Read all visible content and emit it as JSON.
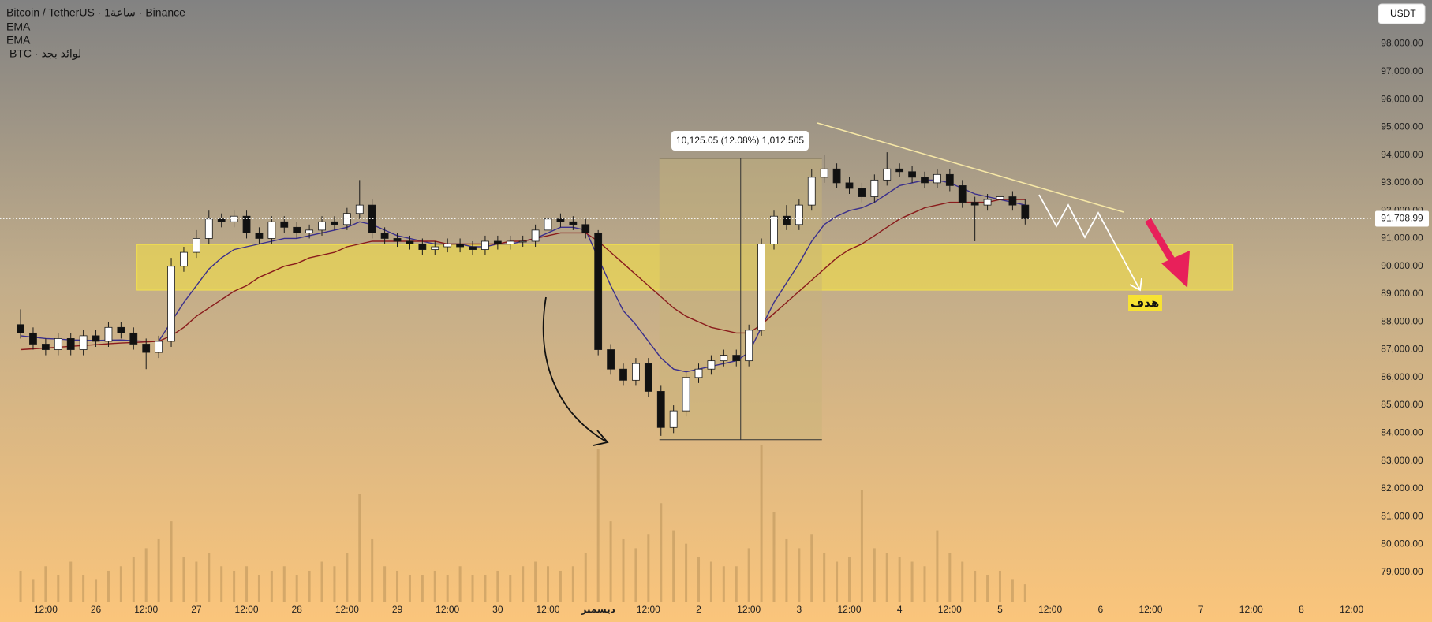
{
  "chart_data": {
    "type": "candlestick",
    "legend": [
      "Bitcoin / TetherUS · 1ساعة · Binance",
      "BTC · لوائد بجد"
    ],
    "currency_button": "USDT",
    "measure_label": "10,125.05 (12.08%) 1,012,505",
    "target_label": "هدف",
    "categories": [
      null,
      null,
      "12:00",
      null,
      null,
      null,
      "26",
      null,
      null,
      null,
      "12:00",
      null,
      null,
      null,
      "27",
      null,
      null,
      null,
      "12:00",
      null,
      null,
      null,
      "28",
      null,
      null,
      null,
      "12:00",
      null,
      null,
      null,
      "29",
      null,
      null,
      null,
      "12:00",
      null,
      null,
      null,
      "30",
      null,
      null,
      null,
      "12:00",
      null,
      null,
      null,
      "ديسمبر",
      null,
      null,
      null,
      "12:00",
      null,
      null,
      null,
      "2",
      null,
      null,
      null,
      "12:00",
      null,
      null,
      null,
      "3",
      null,
      null,
      null,
      "12:00",
      null,
      null,
      null,
      "4",
      null,
      null,
      null,
      "12:00",
      null,
      null,
      null,
      "5",
      null,
      null,
      null,
      "12:00",
      null,
      null,
      null,
      "6",
      null,
      null,
      null,
      "12:00",
      null,
      null,
      null,
      "7",
      null,
      null,
      null,
      "12:00",
      null,
      null,
      null,
      "8",
      null,
      null,
      null,
      "12:00"
    ],
    "open": [
      87900,
      87600,
      87200,
      87000,
      87400,
      87000,
      87500,
      87300,
      87800,
      87600,
      87200,
      86900,
      87300,
      90000,
      90500,
      91000,
      91700,
      91600,
      91800,
      91200,
      91000,
      91600,
      91400,
      91200,
      91300,
      91600,
      91500,
      91900,
      92200,
      91200,
      91000,
      90900,
      90800,
      90600,
      90700,
      90800,
      90700,
      90600,
      90900,
      90800,
      90900,
      90900,
      91300,
      91700,
      91600,
      91500,
      91200,
      87000,
      86300,
      85900,
      86500,
      85500,
      84200,
      84800,
      86000,
      86300,
      86600,
      86800,
      86600,
      87700,
      90800,
      91800,
      91500,
      92200,
      93200,
      93500,
      93000,
      92800,
      92500,
      93100,
      93500,
      93400,
      93200,
      93000,
      93300,
      92900,
      92300,
      92200,
      92400,
      92500,
      92200,
      null,
      null,
      null,
      null,
      null,
      null,
      null,
      null,
      null,
      null,
      null,
      null,
      null,
      null,
      null,
      null,
      null,
      null,
      null,
      null,
      null,
      null,
      null,
      null,
      null,
      null
    ],
    "high": [
      88450,
      87800,
      87400,
      87600,
      87600,
      87700,
      87700,
      88000,
      88000,
      87800,
      87400,
      87500,
      90300,
      90700,
      91300,
      92000,
      91900,
      92000,
      92000,
      91400,
      91800,
      91800,
      91600,
      91500,
      91800,
      91800,
      92100,
      93100,
      92400,
      91400,
      91200,
      91100,
      91000,
      90900,
      91000,
      91000,
      90900,
      91100,
      91100,
      91100,
      91100,
      91500,
      92000,
      91900,
      91800,
      91700,
      91300,
      87200,
      86500,
      86700,
      86700,
      85700,
      85000,
      86200,
      86500,
      86800,
      87000,
      87000,
      87900,
      91000,
      92000,
      92200,
      92400,
      93500,
      94000,
      93700,
      93200,
      93000,
      93300,
      94100,
      93700,
      93600,
      93400,
      93500,
      93500,
      93100,
      92500,
      92600,
      92700,
      92700,
      92400,
      null,
      null,
      null,
      null,
      null,
      null,
      null,
      null,
      null,
      null,
      null,
      null,
      null,
      null,
      null,
      null,
      null,
      null,
      null,
      null,
      null,
      null,
      null,
      null,
      null,
      null
    ],
    "low": [
      87400,
      87000,
      86800,
      86800,
      86800,
      86800,
      87100,
      87100,
      87400,
      87000,
      86300,
      86700,
      87100,
      89800,
      90300,
      90800,
      91400,
      91400,
      91000,
      90800,
      90800,
      91200,
      91000,
      91000,
      91100,
      91300,
      91300,
      91700,
      91000,
      90800,
      90700,
      90600,
      90400,
      90400,
      90500,
      90500,
      90400,
      90400,
      90600,
      90600,
      90700,
      90700,
      91100,
      91400,
      91300,
      91000,
      86800,
      86100,
      85700,
      85700,
      85300,
      83900,
      84000,
      84600,
      85800,
      86100,
      86400,
      86400,
      86400,
      87500,
      90600,
      91300,
      91300,
      92000,
      93000,
      92800,
      92600,
      92300,
      92300,
      92900,
      93200,
      93000,
      92800,
      92800,
      92700,
      92100,
      90900,
      92000,
      92200,
      92000,
      91500,
      null,
      null,
      null,
      null,
      null,
      null,
      null,
      null,
      null,
      null,
      null,
      null,
      null,
      null,
      null,
      null,
      null,
      null,
      null,
      null,
      null,
      null,
      null,
      null,
      null,
      null
    ],
    "close": [
      87600,
      87200,
      87000,
      87400,
      87000,
      87500,
      87300,
      87800,
      87600,
      87200,
      86900,
      87300,
      90000,
      90500,
      91000,
      91700,
      91600,
      91800,
      91200,
      91000,
      91600,
      91400,
      91200,
      91300,
      91600,
      91500,
      91900,
      92200,
      91200,
      91000,
      90900,
      90800,
      90600,
      90700,
      90800,
      90700,
      90600,
      90900,
      90800,
      90900,
      90900,
      91300,
      91700,
      91600,
      91500,
      91200,
      87000,
      86300,
      85900,
      86500,
      85500,
      84200,
      84800,
      86000,
      86300,
      86600,
      86800,
      86600,
      87700,
      90800,
      91800,
      91500,
      92200,
      93200,
      93500,
      93000,
      92800,
      92500,
      93100,
      93500,
      93400,
      93200,
      93000,
      93300,
      92900,
      92300,
      92200,
      92400,
      92500,
      92200,
      91709,
      null,
      null,
      null,
      null,
      null,
      null,
      null,
      null,
      null,
      null,
      null,
      null,
      null,
      null,
      null,
      null,
      null,
      null,
      null,
      null,
      null,
      null,
      null,
      null,
      null,
      null
    ],
    "volume": [
      35,
      25,
      40,
      30,
      45,
      30,
      25,
      35,
      40,
      50,
      60,
      70,
      90,
      50,
      45,
      55,
      40,
      35,
      40,
      30,
      35,
      40,
      30,
      35,
      45,
      40,
      55,
      120,
      70,
      40,
      35,
      30,
      30,
      35,
      30,
      40,
      30,
      30,
      35,
      30,
      40,
      45,
      40,
      35,
      40,
      55,
      170,
      90,
      70,
      60,
      75,
      110,
      80,
      65,
      50,
      45,
      40,
      40,
      60,
      175,
      100,
      70,
      60,
      75,
      55,
      45,
      50,
      125,
      60,
      55,
      50,
      45,
      40,
      80,
      55,
      45,
      35,
      30,
      35,
      25,
      20,
      null,
      null,
      null,
      null,
      null,
      null,
      null,
      null,
      null,
      null,
      null,
      null,
      null,
      null,
      null,
      null,
      null,
      null,
      null,
      null,
      null,
      null,
      null,
      null,
      null,
      null
    ],
    "up_color": "#ffffff",
    "down_color": "#111111",
    "volume_color": "#b8925a",
    "ema": [
      {
        "name": "EMA",
        "color": "#3a2f8c",
        "values": [
          87500,
          87450,
          87400,
          87380,
          87350,
          87340,
          87330,
          87340,
          87350,
          87320,
          87300,
          87300,
          88000,
          88700,
          89300,
          89900,
          90300,
          90600,
          90700,
          90800,
          90900,
          91000,
          91000,
          91100,
          91200,
          91300,
          91400,
          91600,
          91500,
          91300,
          91100,
          91000,
          90900,
          90800,
          90800,
          90800,
          90700,
          90700,
          90800,
          90800,
          90900,
          91000,
          91200,
          91400,
          91400,
          91300,
          90300,
          89300,
          88400,
          87900,
          87300,
          86700,
          86300,
          86200,
          86300,
          86400,
          86500,
          86600,
          86900,
          87800,
          88700,
          89400,
          90100,
          90900,
          91500,
          91800,
          92000,
          92100,
          92300,
          92600,
          92900,
          93000,
          93100,
          93100,
          93000,
          92800,
          92600,
          92500,
          92400,
          92300,
          92200,
          null,
          null,
          null,
          null,
          null,
          null,
          null,
          null,
          null,
          null,
          null,
          null,
          null,
          null,
          null,
          null,
          null,
          null,
          null,
          null,
          null,
          null,
          null,
          null,
          null,
          null
        ]
      },
      {
        "name": "EMA",
        "color": "#8a1c1c",
        "values": [
          87000,
          87030,
          87060,
          87090,
          87120,
          87150,
          87180,
          87210,
          87240,
          87260,
          87280,
          87300,
          87500,
          87800,
          88200,
          88500,
          88800,
          89100,
          89300,
          89600,
          89800,
          90000,
          90100,
          90300,
          90400,
          90500,
          90700,
          90800,
          90900,
          90900,
          90900,
          90900,
          90900,
          90900,
          90800,
          90800,
          90800,
          90800,
          90800,
          90900,
          90900,
          91000,
          91100,
          91200,
          91200,
          91200,
          90900,
          90500,
          90100,
          89700,
          89300,
          88900,
          88500,
          88200,
          88000,
          87800,
          87700,
          87600,
          87600,
          87900,
          88300,
          88700,
          89100,
          89500,
          89900,
          90300,
          90600,
          90800,
          91100,
          91400,
          91700,
          91900,
          92100,
          92200,
          92300,
          92300,
          92300,
          92300,
          92400,
          92400,
          92400,
          null,
          null,
          null,
          null,
          null,
          null,
          null,
          null,
          null,
          null,
          null,
          null,
          null,
          null,
          null,
          null,
          null,
          null,
          null,
          null,
          null,
          null,
          null,
          null,
          null,
          null
        ]
      }
    ],
    "ylim": [
      77915,
      99575
    ],
    "yticks": [
      {
        "value": 79000,
        "label": "79,000.00"
      },
      {
        "value": 80000,
        "label": "80,000.00"
      },
      {
        "value": 81000,
        "label": "81,000.00"
      },
      {
        "value": 82000,
        "label": "82,000.00"
      },
      {
        "value": 83000,
        "label": "83,000.00"
      },
      {
        "value": 84000,
        "label": "84,000.00"
      },
      {
        "value": 85000,
        "label": "85,000.00"
      },
      {
        "value": 86000,
        "label": "86,000.00"
      },
      {
        "value": 87000,
        "label": "87,000.00"
      },
      {
        "value": 88000,
        "label": "88,000.00"
      },
      {
        "value": 89000,
        "label": "89,000.00"
      },
      {
        "value": 90000,
        "label": "90,000.00"
      },
      {
        "value": 91000,
        "label": "91,000.00"
      },
      {
        "value": 92000,
        "label": "92,000.00"
      },
      {
        "value": 93000,
        "label": "93,000.00"
      },
      {
        "value": 94000,
        "label": "94,000.00"
      },
      {
        "value": 95000,
        "label": "95,000.00"
      },
      {
        "value": 96000,
        "label": "96,000.00"
      },
      {
        "value": 97000,
        "label": "97,000.00"
      },
      {
        "value": 98000,
        "label": "98,000.00"
      }
    ],
    "last_price": {
      "value": 91708.99,
      "label": "91,708.99"
    },
    "zone": [
      89140,
      90780
    ],
    "measure": [
      83760,
      93885
    ]
  }
}
